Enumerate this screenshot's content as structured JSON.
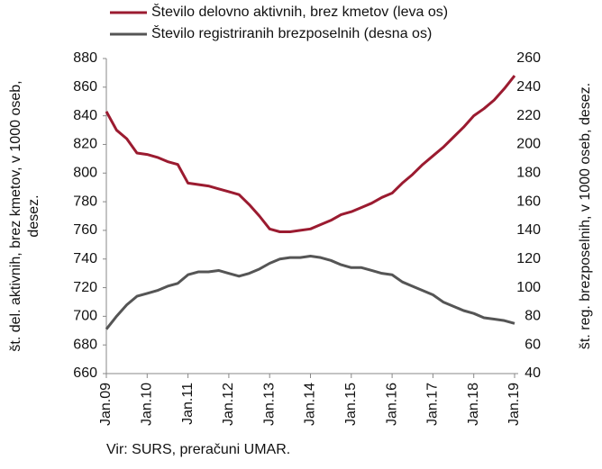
{
  "chart_data": {
    "type": "line",
    "categories": [
      "Jan.09",
      null,
      null,
      null,
      "Jan.10",
      null,
      null,
      null,
      "Jan.11",
      null,
      null,
      null,
      "Jan.12",
      null,
      null,
      null,
      "Jan.13",
      null,
      null,
      null,
      "Jan.14",
      null,
      null,
      null,
      "Jan.15",
      null,
      null,
      null,
      "Jan.16",
      null,
      null,
      null,
      "Jan.17",
      null,
      null,
      null,
      "Jan.18",
      null,
      null,
      null,
      "Jan.19"
    ],
    "series": [
      {
        "name": "Število delovno aktivnih, brez kmetov (leva os)",
        "color": "#9b1b30",
        "values": [
          843,
          830,
          824,
          814,
          813,
          811,
          808,
          806,
          793,
          792,
          791,
          789,
          787,
          785,
          778,
          770,
          761,
          759,
          759,
          760,
          761,
          764,
          767,
          771,
          773,
          776,
          779,
          783,
          786,
          793,
          799,
          806,
          812,
          818,
          825,
          832,
          840,
          845,
          851,
          859,
          868
        ]
      },
      {
        "name": "Število registriranih brezposelnih (desna os)",
        "color": "#555555",
        "axis": "y2",
        "values": [
          71,
          80,
          88,
          94,
          96,
          98,
          101,
          103,
          109,
          111,
          111,
          112,
          110,
          108,
          110,
          113,
          117,
          120,
          121,
          121,
          122,
          121,
          119,
          116,
          114,
          114,
          112,
          110,
          109,
          104,
          101,
          98,
          95,
          90,
          87,
          84,
          82,
          79,
          78,
          77,
          75
        ]
      }
    ],
    "ylabel": [
      "št. del. aktivnih, brez kmetov, v 1000 oseb,",
      "desez."
    ],
    "y2label": "št. reg. brezposelnih, v 1000 oseb, desez.",
    "ylim": [
      660,
      880
    ],
    "yticks": [
      660,
      680,
      700,
      720,
      740,
      760,
      780,
      800,
      820,
      840,
      860,
      880
    ],
    "y2lim": [
      40,
      260
    ],
    "y2ticks": [
      40,
      60,
      80,
      100,
      120,
      140,
      160,
      180,
      200,
      220,
      240,
      260
    ],
    "legend": "top",
    "source": "Vir: SURS, preračuni UMAR."
  }
}
